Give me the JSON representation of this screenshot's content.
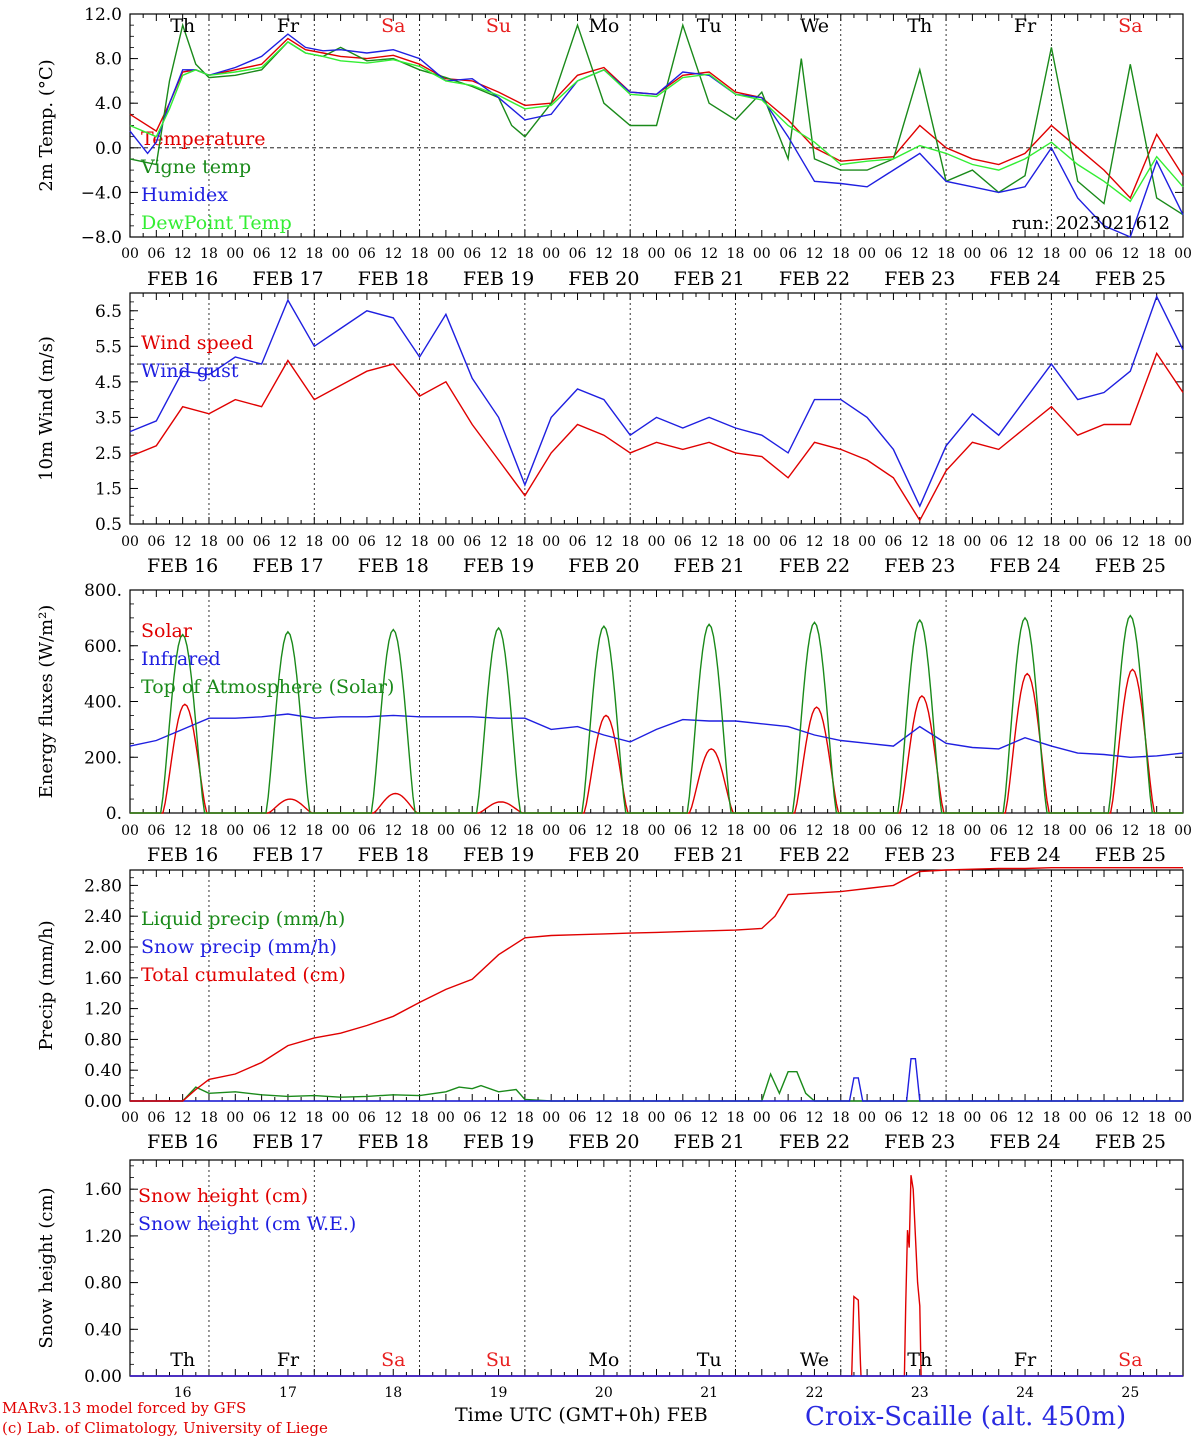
{
  "colors": {
    "red": "#e00000",
    "green": "#1a8a1a",
    "blue": "#1f1fe0",
    "lightgreen": "#33ee33",
    "weekend": "#e82020",
    "weekday": "#000000"
  },
  "axis": {
    "x_ticks": [
      "00",
      "06",
      "12",
      "18",
      "00",
      "06",
      "12",
      "18",
      "00",
      "06",
      "12",
      "18",
      "00",
      "06",
      "12",
      "18",
      "00",
      "06",
      "12",
      "18",
      "00",
      "06",
      "12",
      "18",
      "00",
      "06",
      "12",
      "18",
      "00",
      "06",
      "12",
      "18",
      "00",
      "06",
      "12",
      "18",
      "00",
      "06",
      "12",
      "18",
      "00"
    ],
    "dates": [
      "FEB 16",
      "FEB 17",
      "FEB 18",
      "FEB 19",
      "FEB 20",
      "FEB 21",
      "FEB 22",
      "FEB 23",
      "FEB 24",
      "FEB 25"
    ],
    "days": [
      "Th",
      "Fr",
      "Sa",
      "Su",
      "Mo",
      "Tu",
      "We",
      "Th",
      "Fr",
      "Sa"
    ],
    "day_colors": [
      "#000000",
      "#000000",
      "#e82020",
      "#e82020",
      "#000000",
      "#000000",
      "#000000",
      "#000000",
      "#000000",
      "#e82020"
    ],
    "day_numbers": [
      "16",
      "17",
      "18",
      "19",
      "20",
      "21",
      "22",
      "23",
      "24",
      "25"
    ],
    "x_title": "Time UTC (GMT+0h)",
    "x_month": "FEB"
  },
  "footer": {
    "model": "MARv3.13 model forced by GFS",
    "lab": "(c) Lab. of Climatology, University of Liege",
    "station": "Croix-Scaille (alt. 450m)"
  },
  "chart_data": [
    {
      "type": "line",
      "ylabel": "2m Temp. (°C)",
      "ylim": [
        -8,
        12
      ],
      "yticks": [
        "12.0",
        "8.0",
        "4.0",
        "0.0",
        "−4.0",
        "−8.0"
      ],
      "ytick_values": [
        12,
        8,
        4,
        0,
        -4,
        -8
      ],
      "reference_line": 0,
      "annotation": "run: 2023021612",
      "x_unit": "hours since FEB 16 00 UTC",
      "series": [
        {
          "name": "Temperature",
          "color": "#e00000",
          "x": [
            0,
            6,
            9,
            12,
            15,
            18,
            24,
            30,
            36,
            40,
            44,
            48,
            54,
            60,
            66,
            72,
            78,
            84,
            90,
            96,
            102,
            108,
            114,
            120,
            126,
            132,
            138,
            144,
            150,
            156,
            162,
            168,
            174,
            180,
            186,
            192,
            198,
            204,
            210,
            216,
            222,
            228,
            234,
            240
          ],
          "y": [
            3,
            1.5,
            4,
            6.8,
            7,
            6.5,
            7,
            7.5,
            9.8,
            8.8,
            8.5,
            8.2,
            8,
            8.3,
            7.5,
            6.2,
            6,
            5,
            3.8,
            4,
            6.5,
            7.2,
            5,
            4.8,
            6.5,
            6.8,
            5,
            4.5,
            2.5,
            0,
            -1.2,
            -1,
            -0.8,
            2,
            0,
            -1,
            -1.5,
            -0.5,
            2,
            0,
            -2,
            -4.5,
            1.2,
            -2.5
          ]
        },
        {
          "name": "Vigne temp",
          "color": "#1a8a1a",
          "x": [
            0,
            6,
            9,
            12,
            15,
            18,
            24,
            30,
            36,
            40,
            44,
            48,
            54,
            60,
            66,
            72,
            78,
            84,
            87,
            90,
            96,
            102,
            108,
            114,
            120,
            126,
            132,
            138,
            144,
            150,
            153,
            156,
            162,
            168,
            174,
            180,
            186,
            192,
            198,
            204,
            210,
            216,
            222,
            228,
            234,
            240
          ],
          "y": [
            -1,
            -1.5,
            6,
            11,
            7.5,
            6.3,
            6.5,
            7,
            9.5,
            8.5,
            8.2,
            9,
            7.8,
            8,
            7,
            6.3,
            5.5,
            4.5,
            2,
            1,
            4,
            11,
            4,
            2,
            2,
            11,
            4,
            2.5,
            5,
            -1,
            8,
            -1,
            -2,
            -2,
            -1,
            7,
            -3,
            -2,
            -4,
            -2.5,
            9,
            -3,
            -5,
            7.5,
            -4.5,
            -6
          ]
        },
        {
          "name": "Humidex",
          "color": "#1f1fe0",
          "x": [
            0,
            4,
            6,
            9,
            12,
            15,
            18,
            24,
            30,
            36,
            40,
            44,
            48,
            54,
            60,
            66,
            72,
            78,
            84,
            90,
            96,
            102,
            108,
            114,
            120,
            126,
            132,
            138,
            144,
            150,
            156,
            162,
            168,
            174,
            180,
            186,
            192,
            198,
            204,
            210,
            216,
            222,
            228,
            234,
            240
          ],
          "y": [
            1.5,
            -0.5,
            0.5,
            4,
            7,
            7,
            6.5,
            7.2,
            8.2,
            10.2,
            9,
            8.7,
            8.8,
            8.5,
            8.8,
            8,
            6,
            6.2,
            4.5,
            2.5,
            3,
            6,
            7,
            5,
            4.8,
            6.8,
            6.5,
            4.8,
            4.5,
            1,
            -3,
            -3.2,
            -3.5,
            -2,
            -0.5,
            -3,
            -3.5,
            -4,
            -3.5,
            0,
            -4.5,
            -7,
            -8,
            -1.2,
            -6
          ]
        },
        {
          "name": "DewPoint Temp",
          "color": "#33ee33",
          "x": [
            0,
            6,
            9,
            12,
            15,
            18,
            24,
            30,
            36,
            40,
            44,
            48,
            54,
            60,
            66,
            72,
            78,
            84,
            90,
            96,
            102,
            108,
            114,
            120,
            126,
            132,
            138,
            144,
            150,
            156,
            162,
            168,
            174,
            180,
            186,
            192,
            198,
            204,
            210,
            216,
            222,
            228,
            234,
            240
          ],
          "y": [
            2,
            1,
            3.5,
            6.5,
            7,
            6.5,
            6.8,
            7.2,
            9.5,
            8.5,
            8.2,
            7.8,
            7.6,
            7.9,
            7.3,
            6,
            5.6,
            4.7,
            3.5,
            3.8,
            6,
            7,
            4.8,
            4.6,
            6.3,
            6.6,
            4.8,
            4.3,
            2,
            0.5,
            -1.5,
            -1.2,
            -1,
            0.2,
            -0.5,
            -1.5,
            -2,
            -1,
            0.5,
            -1.5,
            -3,
            -4.8,
            -0.8,
            -3.5
          ]
        }
      ]
    },
    {
      "type": "line",
      "ylabel": "10m Wind (m/s)",
      "ylim": [
        0.5,
        7
      ],
      "yticks": [
        "6.5",
        "5.5",
        "4.5",
        "3.5",
        "2.5",
        "1.5",
        "0.5"
      ],
      "ytick_values": [
        6.5,
        5.5,
        4.5,
        3.5,
        2.5,
        1.5,
        0.5
      ],
      "reference_line": 5,
      "x_unit": "hours since FEB 16 00 UTC",
      "series": [
        {
          "name": "Wind speed",
          "color": "#e00000",
          "x": [
            0,
            6,
            12,
            18,
            24,
            30,
            36,
            42,
            48,
            54,
            60,
            66,
            72,
            78,
            84,
            90,
            96,
            102,
            108,
            114,
            120,
            126,
            132,
            138,
            144,
            150,
            156,
            162,
            168,
            174,
            180,
            186,
            192,
            198,
            204,
            210,
            216,
            222,
            228,
            234,
            240
          ],
          "y": [
            2.4,
            2.7,
            3.8,
            3.6,
            4.0,
            3.8,
            5.1,
            4.0,
            4.4,
            4.8,
            5.0,
            4.1,
            4.5,
            3.3,
            2.3,
            1.3,
            2.5,
            3.3,
            3.0,
            2.5,
            2.8,
            2.6,
            2.8,
            2.5,
            2.4,
            1.8,
            2.8,
            2.6,
            2.3,
            1.8,
            0.6,
            2.0,
            2.8,
            2.6,
            3.2,
            3.8,
            3.0,
            3.3,
            3.3,
            5.3,
            4.2
          ]
        },
        {
          "name": "Wind gust",
          "color": "#1f1fe0",
          "x": [
            0,
            6,
            12,
            18,
            24,
            30,
            36,
            42,
            48,
            54,
            60,
            66,
            72,
            78,
            84,
            90,
            96,
            102,
            108,
            114,
            120,
            126,
            132,
            138,
            144,
            150,
            156,
            162,
            168,
            174,
            180,
            186,
            192,
            198,
            204,
            210,
            216,
            222,
            228,
            234,
            240
          ],
          "y": [
            3.1,
            3.4,
            4.8,
            4.7,
            5.2,
            5.0,
            6.8,
            5.5,
            6.0,
            6.5,
            6.3,
            5.2,
            6.4,
            4.6,
            3.5,
            1.6,
            3.5,
            4.3,
            4.0,
            3.0,
            3.5,
            3.2,
            3.5,
            3.2,
            3.0,
            2.5,
            4.0,
            4.0,
            3.5,
            2.6,
            1.0,
            2.7,
            3.6,
            3.0,
            4.0,
            5.0,
            4.0,
            4.2,
            4.8,
            6.9,
            5.4
          ]
        }
      ]
    },
    {
      "type": "line",
      "ylabel": "Energy fluxes (W/m²)",
      "ylim": [
        0,
        800
      ],
      "yticks": [
        "800.",
        "600.",
        "400.",
        "200.",
        "0."
      ],
      "ytick_values": [
        800,
        600,
        400,
        200,
        0
      ],
      "x_unit": "hours since FEB 16 00 UTC",
      "series": [
        {
          "name": "Solar",
          "color": "#e00000",
          "diurnal_peak_hour": 12.5,
          "day_length_hours": 10,
          "daily_peaks": [
            390,
            50,
            70,
            40,
            350,
            230,
            380,
            420,
            500,
            515
          ]
        },
        {
          "name": "Infrared",
          "color": "#1f1fe0",
          "x": [
            0,
            6,
            12,
            18,
            24,
            30,
            36,
            42,
            48,
            54,
            60,
            66,
            72,
            78,
            84,
            90,
            96,
            102,
            108,
            114,
            120,
            126,
            132,
            138,
            144,
            150,
            156,
            162,
            168,
            174,
            180,
            186,
            192,
            198,
            204,
            210,
            216,
            222,
            228,
            234,
            240
          ],
          "y": [
            240,
            260,
            300,
            340,
            340,
            345,
            355,
            340,
            345,
            345,
            350,
            345,
            345,
            345,
            340,
            340,
            300,
            310,
            280,
            255,
            300,
            335,
            330,
            330,
            320,
            310,
            280,
            260,
            250,
            240,
            310,
            250,
            235,
            230,
            270,
            240,
            215,
            210,
            200,
            205,
            215
          ]
        },
        {
          "name": "Top of Atmosphere (Solar)",
          "color": "#1a8a1a",
          "diurnal_peak_hour": 12,
          "day_length_hours": 10,
          "daily_peaks": [
            640,
            650,
            658,
            664,
            670,
            677,
            684,
            692,
            700,
            708
          ]
        }
      ]
    },
    {
      "type": "line",
      "ylabel": "Precip (mm/h)",
      "ylim": [
        0,
        3.0
      ],
      "yticks": [
        "2.80",
        "2.40",
        "2.00",
        "1.60",
        "1.20",
        "0.80",
        "0.40",
        "0.00"
      ],
      "ytick_values": [
        2.8,
        2.4,
        2.0,
        1.6,
        1.2,
        0.8,
        0.4,
        0.0
      ],
      "x_unit": "hours since FEB 16 00 UTC",
      "series": [
        {
          "name": "Liquid precip (mm/h)",
          "color": "#1a8a1a",
          "x": [
            0,
            12,
            15,
            18,
            24,
            30,
            36,
            42,
            48,
            54,
            60,
            66,
            72,
            75,
            78,
            80,
            84,
            88,
            90,
            96,
            144,
            146,
            148,
            150,
            152,
            154,
            156,
            168,
            240
          ],
          "y": [
            0,
            0,
            0.18,
            0.1,
            0.12,
            0.08,
            0.06,
            0.07,
            0.05,
            0.06,
            0.08,
            0.07,
            0.12,
            0.18,
            0.16,
            0.2,
            0.12,
            0.15,
            0.02,
            0,
            0,
            0.35,
            0.1,
            0.38,
            0.38,
            0.1,
            0,
            0,
            0
          ]
        },
        {
          "name": "Snow precip (mm/h)",
          "color": "#1f1fe0",
          "x": [
            0,
            164,
            165,
            166,
            167,
            177,
            178,
            179,
            180,
            240
          ],
          "y": [
            0,
            0,
            0.3,
            0.3,
            0,
            0,
            0.55,
            0.55,
            0,
            0
          ]
        },
        {
          "name": "Total cumulated (cm)",
          "color": "#e00000",
          "x": [
            0,
            12,
            15,
            18,
            24,
            30,
            36,
            42,
            48,
            54,
            60,
            66,
            72,
            78,
            84,
            90,
            96,
            102,
            108,
            114,
            120,
            126,
            132,
            138,
            144,
            147,
            150,
            156,
            162,
            168,
            174,
            180,
            186,
            192,
            198,
            204,
            210,
            216,
            222,
            228,
            234,
            240
          ],
          "y": [
            0,
            0,
            0.15,
            0.28,
            0.35,
            0.5,
            0.72,
            0.82,
            0.88,
            0.98,
            1.1,
            1.28,
            1.45,
            1.58,
            1.9,
            2.12,
            2.15,
            2.16,
            2.17,
            2.18,
            2.19,
            2.2,
            2.21,
            2.22,
            2.24,
            2.4,
            2.68,
            2.7,
            2.72,
            2.76,
            2.8,
            2.98,
            3.0,
            3.01,
            3.02,
            3.02,
            3.03,
            3.03,
            3.03,
            3.03,
            3.03,
            3.03
          ]
        }
      ]
    },
    {
      "type": "line",
      "ylabel": "Snow height (cm)",
      "ylim": [
        0,
        1.85
      ],
      "yticks": [
        "1.60",
        "1.20",
        "0.80",
        "0.40",
        "0.00"
      ],
      "ytick_values": [
        1.6,
        1.2,
        0.8,
        0.4,
        0.0
      ],
      "x_unit": "hours since FEB 16 00 UTC",
      "series": [
        {
          "name": "Snow height (cm)",
          "color": "#e00000",
          "x": [
            0,
            164.5,
            165,
            166,
            166.5,
            166.6,
            176.5,
            176.8,
            177.2,
            177.6,
            178,
            178.5,
            179,
            179.5,
            180,
            180.3,
            240
          ],
          "y": [
            0,
            0,
            0.68,
            0.65,
            0.1,
            0,
            0,
            0.6,
            1.25,
            1.1,
            1.72,
            1.6,
            1.2,
            0.8,
            0.6,
            0,
            0
          ]
        },
        {
          "name": "Snow height (cm W.E.)",
          "color": "#1f1fe0",
          "x": [
            0,
            240
          ],
          "y": [
            0,
            0
          ]
        }
      ]
    }
  ]
}
